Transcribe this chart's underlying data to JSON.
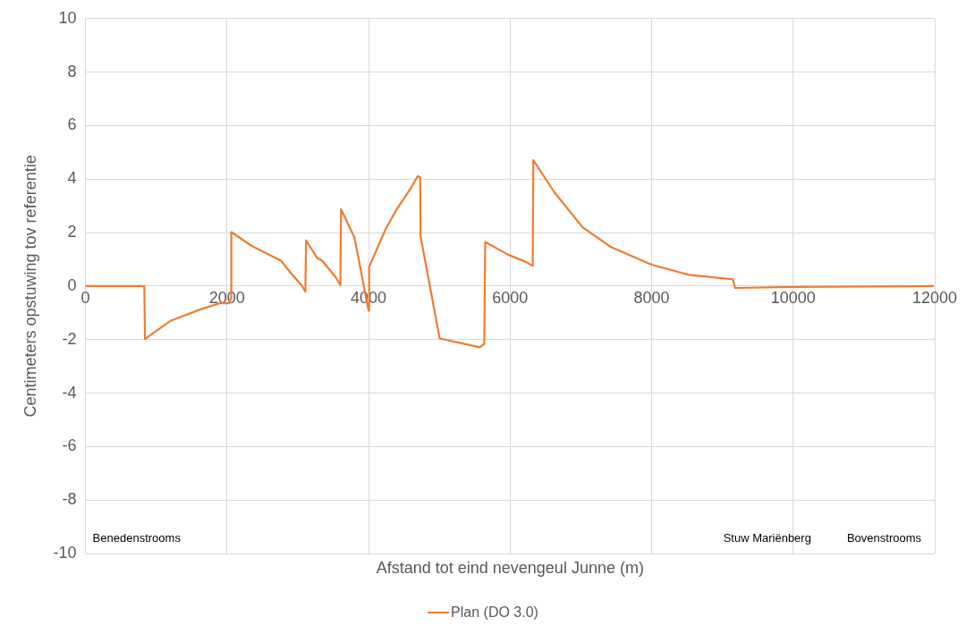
{
  "chart_data": {
    "type": "line",
    "xlabel": "Afstand tot eind nevengeul Junne (m)",
    "ylabel": "Centimeters opstuwing tov referentie",
    "xlim": [
      0,
      12000
    ],
    "xticks": [
      0,
      2000,
      4000,
      6000,
      8000,
      10000,
      12000
    ],
    "ylim": [
      -10,
      10
    ],
    "yticks": [
      -10,
      -8,
      -6,
      -4,
      -2,
      0,
      2,
      4,
      6,
      8,
      10
    ],
    "grid": true,
    "legend": "bottom",
    "marker": "none",
    "line_style": "solid",
    "annotations": [
      "Benedenstrooms",
      "Stuw Mariënberg",
      "Bovenstrooms"
    ],
    "series": [
      {
        "name": "Plan (DO 3.0)",
        "color": "#ed7d31",
        "x": [
          0,
          831,
          840,
          1193,
          1635,
          1900,
          2033,
          2055,
          2060,
          2343,
          2762,
          2917,
          3050,
          3107,
          3116,
          3270,
          3344,
          3535,
          3601,
          3611,
          3800,
          4000,
          4008,
          4243,
          4398,
          4597,
          4694,
          4729,
          4735,
          5005,
          5569,
          5635,
          5648,
          5966,
          6210,
          6320,
          6328,
          6630,
          7027,
          7425,
          7999,
          8530,
          9149,
          9179,
          9988,
          11977
        ],
        "values": [
          0,
          0,
          -1.98,
          -1.31,
          -0.86,
          -0.64,
          -0.64,
          -0.45,
          2.02,
          1.51,
          0.95,
          0.44,
          0.04,
          -0.21,
          1.71,
          1.06,
          0.95,
          0.33,
          0.04,
          2.87,
          1.82,
          -0.92,
          0.72,
          2.14,
          2.87,
          3.66,
          4.11,
          4.06,
          1.85,
          -1.96,
          -2.29,
          -2.16,
          1.65,
          1.18,
          0.92,
          0.76,
          4.71,
          3.49,
          2.19,
          1.46,
          0.8,
          0.42,
          0.25,
          -0.07,
          -0.03,
          0
        ]
      }
    ]
  }
}
